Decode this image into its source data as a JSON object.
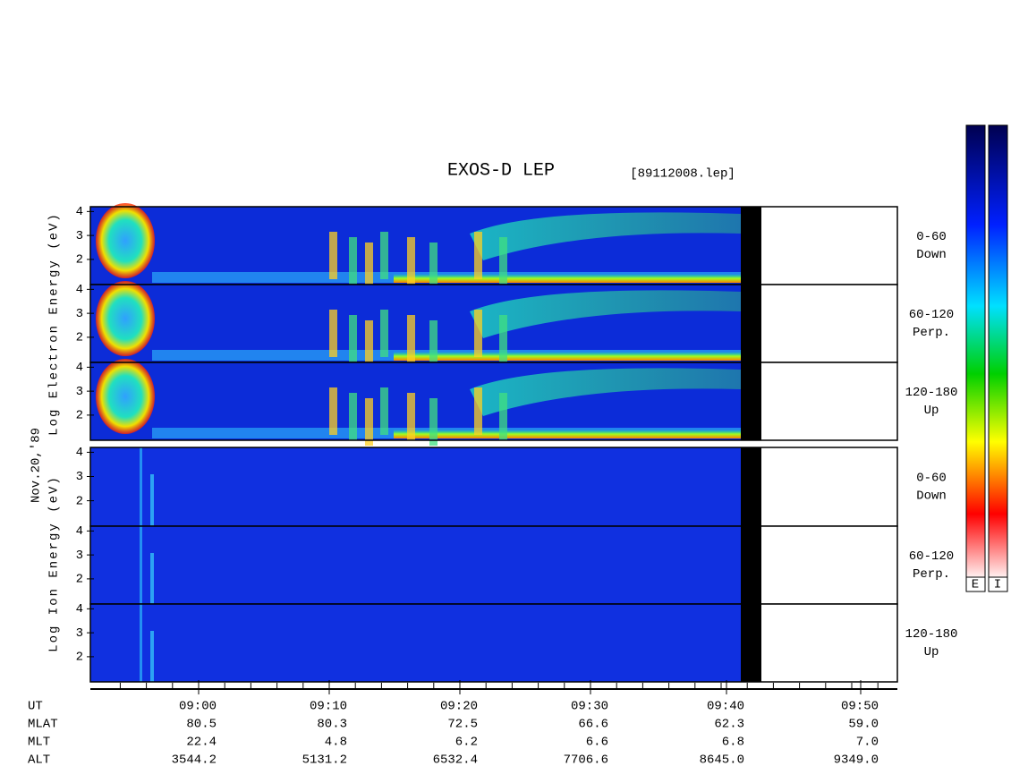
{
  "title": "EXOS-D LEP",
  "file": "[89112008.lep]",
  "date": "Nov.20,'89",
  "electron_axis_label": "Log Electron Energy (eV)",
  "ion_axis_label": "Log Ion Energy (eV)",
  "yticks": [
    2,
    3,
    4
  ],
  "panels": [
    {
      "range": "0-60",
      "direction": "Down"
    },
    {
      "range": "60-120",
      "direction": "Perp."
    },
    {
      "range": "120-180",
      "direction": "Up"
    },
    {
      "range": "0-60",
      "direction": "Down"
    },
    {
      "range": "60-120",
      "direction": "Perp."
    },
    {
      "range": "120-180",
      "direction": "Up"
    }
  ],
  "colorbar_labels": [
    "E",
    "I"
  ],
  "table": {
    "rows": [
      {
        "name": "UT",
        "values": [
          "09:00",
          "09:10",
          "09:20",
          "09:30",
          "09:40",
          "09:50"
        ]
      },
      {
        "name": "MLAT",
        "values": [
          "80.5",
          "80.3",
          "72.5",
          "66.6",
          "62.3",
          "59.0"
        ]
      },
      {
        "name": "MLT",
        "values": [
          "22.4",
          "4.8",
          "6.2",
          "6.6",
          "6.8",
          "7.0"
        ]
      },
      {
        "name": "ALT",
        "values": [
          "3544.2",
          "5131.2",
          "6532.4",
          "7706.6",
          "8645.0",
          "9349.0"
        ]
      }
    ]
  }
}
